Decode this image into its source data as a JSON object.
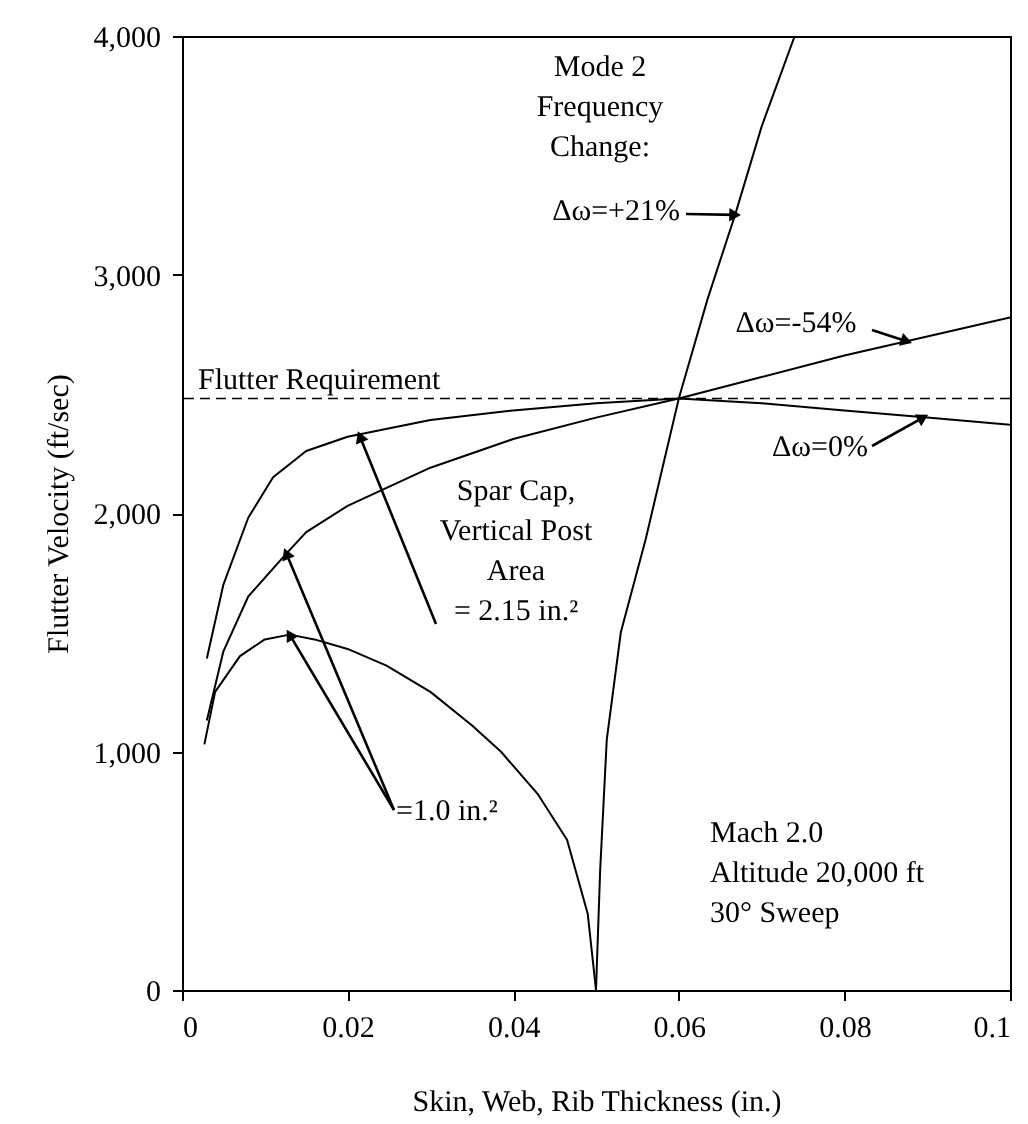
{
  "chart_data": {
    "type": "line",
    "xlabel": "Skin, Web, Rib Thickness (in.)",
    "ylabel": "Flutter Velocity (ft/sec)",
    "series": [
      {
        "color": "#000000",
        "x": [
          0.003,
          0.005,
          0.008,
          0.011,
          0.015,
          0.02,
          0.03,
          0.04,
          0.05,
          0.06,
          0.07,
          0.08,
          0.09,
          0.1
        ],
        "values": [
          1390,
          1700,
          1980,
          2150,
          2260,
          2320,
          2390,
          2430,
          2460,
          2480,
          2460,
          2430,
          2400,
          2370
        ]
      },
      {
        "color": "#000000",
        "x": [
          0.003,
          0.005,
          0.008,
          0.0126,
          0.015,
          0.02,
          0.03,
          0.04,
          0.05,
          0.06,
          0.07,
          0.08,
          0.09,
          0.1
        ],
        "values": [
          1130,
          1420,
          1650,
          1830,
          1920,
          2030,
          2190,
          2310,
          2400,
          2480,
          2570,
          2660,
          2740,
          2820
        ]
      },
      {
        "color": "#000000",
        "x": [
          0.0027,
          0.004,
          0.007,
          0.01,
          0.013,
          0.016,
          0.02,
          0.0247,
          0.03,
          0.035,
          0.0385,
          0.043,
          0.0465,
          0.049,
          0.05
        ],
        "values": [
          1030,
          1250,
          1400,
          1470,
          1490,
          1470,
          1430,
          1360,
          1250,
          1110,
          1000,
          820,
          630,
          320,
          0
        ]
      },
      {
        "color": "#000000",
        "x": [
          0.05,
          0.0505,
          0.0513,
          0.053,
          0.056,
          0.06,
          0.0635,
          0.0668,
          0.07,
          0.074
        ],
        "values": [
          0,
          500,
          1050,
          1500,
          1890,
          2480,
          2900,
          3250,
          3620,
          4000
        ]
      }
    ],
    "xlim": [
      0,
      0.1
    ],
    "xticks": [
      0,
      0.02,
      0.04,
      0.06,
      0.08,
      0.1
    ],
    "ylim": [
      0,
      4000
    ],
    "yticks": [
      {
        "value": 0,
        "label": "0"
      },
      {
        "value": 1000,
        "label": "1,000"
      },
      {
        "value": 2000,
        "label": "2,000"
      },
      {
        "value": 3000,
        "label": "3,000"
      },
      {
        "value": 4000,
        "label": "4,000"
      }
    ],
    "ref_lines": [
      {
        "axis": "y",
        "value": 2480,
        "label": "Flutter Requirement",
        "line_style": "dashed"
      }
    ],
    "annotations": [
      "Mode 2\nFrequency\nChange:",
      {
        "text": "Δω=+21%",
        "x": 0.0668,
        "y": 3250
      },
      {
        "text": "Δω=-54%",
        "x": 0.0875,
        "y": 2720
      },
      {
        "text": "Δω=0%",
        "x": 0.0895,
        "y": 2400
      },
      {
        "text": "Spar Cap,\nVertical Post\nArea\n= 2.15 in.²",
        "x": 0.0215,
        "y": 2320
      },
      {
        "text": "=1.0 in.²",
        "x": 0.013,
        "y": 1490
      },
      "Mach 2.0\nAltitude 20,000 ft\n30° Sweep"
    ],
    "grid": false,
    "marker": "none",
    "line_style": "solid"
  }
}
